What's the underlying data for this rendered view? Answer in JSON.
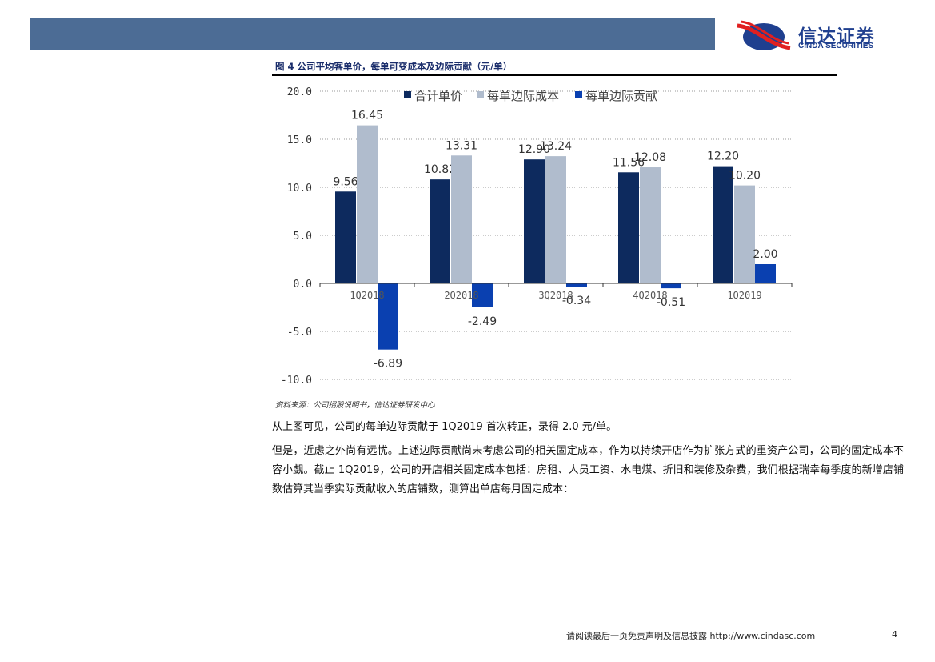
{
  "header": {
    "logo_cn": "信达证券",
    "logo_en": "CINDA SECURITIES"
  },
  "figure": {
    "title": "图 4 公司平均客单价，每单可变成本及边际贡献（元/单）",
    "source": "资料来源：公司招股说明书，信达证券研发中心"
  },
  "chart_data": {
    "type": "bar",
    "title": "图 4 公司平均客单价，每单可变成本及边际贡献（元/单）",
    "categories": [
      "1Q2018",
      "2Q2018",
      "3Q2018",
      "4Q2018",
      "1Q2019"
    ],
    "series": [
      {
        "name": "合计单价",
        "color": "#0d2a5e",
        "values": [
          9.56,
          10.82,
          12.9,
          11.56,
          12.2
        ]
      },
      {
        "name": "每单边际成本",
        "color": "#b0bccd",
        "values": [
          16.45,
          13.31,
          13.24,
          12.08,
          10.2
        ]
      },
      {
        "name": "每单边际贡献",
        "color": "#0a40b0",
        "values": [
          -6.89,
          -2.49,
          -0.34,
          -0.51,
          2.0
        ]
      }
    ],
    "ylim": [
      -10,
      20
    ],
    "yticks": [
      "-10.0",
      "-5.0",
      "0.0",
      "5.0",
      "10.0",
      "15.0",
      "20.0"
    ],
    "grid": true,
    "legend": "top"
  },
  "body": {
    "p1": "从上图可见，公司的每单边际贡献于 1Q2019 首次转正，录得 2.0 元/单。",
    "p2": "但是，近虑之外尚有远忧。上述边际贡献尚未考虑公司的相关固定成本，作为以持续开店作为扩张方式的重资产公司，公司的固定成本不容小觑。截止 1Q2019，公司的开店相关固定成本包括：房租、人员工资、水电煤、折旧和装修及杂费，我们根据瑞幸每季度的新增店铺数估算其当季实际贡献收入的店铺数，测算出单店每月固定成本："
  },
  "footer": {
    "text": "请阅读最后一页免责声明及信息披露 http://www.cindasc.com",
    "page": "4"
  }
}
